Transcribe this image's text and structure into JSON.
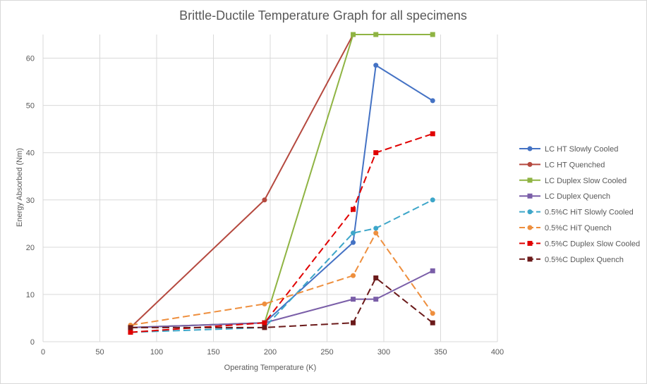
{
  "chart_data": {
    "type": "line",
    "title": "Brittle-Ductile Temperature Graph for all specimens",
    "xlabel": "Operating Temperature (K)",
    "ylabel": "Energy Absorbed (Nm)",
    "xlim": [
      0,
      400
    ],
    "ylim": [
      0,
      65
    ],
    "xticks": [
      0,
      50,
      100,
      150,
      200,
      250,
      300,
      350,
      400
    ],
    "yticks": [
      0,
      10,
      20,
      30,
      40,
      50,
      60
    ],
    "grid": true,
    "legend_position": "right",
    "series": [
      {
        "name": "LC HT Slowly Cooled",
        "color": "#4472C4",
        "marker": "circle",
        "dash": false,
        "x": [
          77,
          195,
          273,
          293,
          343
        ],
        "y": [
          3,
          4,
          21,
          58.5,
          51
        ]
      },
      {
        "name": "LC HT Quenched",
        "color": "#B5493F",
        "marker": "circle",
        "dash": false,
        "x": [
          77,
          195,
          273
        ],
        "y": [
          3,
          30,
          65
        ]
      },
      {
        "name": "LC Duplex Slow Cooled",
        "color": "#8FB443",
        "marker": "square",
        "dash": false,
        "x": [
          77,
          195,
          273,
          293,
          343
        ],
        "y": [
          3,
          4,
          65,
          65,
          65
        ]
      },
      {
        "name": "LC Duplex Quench",
        "color": "#7A5EA8",
        "marker": "square",
        "dash": false,
        "x": [
          77,
          195,
          273,
          293,
          343
        ],
        "y": [
          3,
          4,
          9,
          9,
          15
        ]
      },
      {
        "name": "0.5%C HiT Slowly Cooled",
        "color": "#3DA6C9",
        "marker": "circle",
        "dash": true,
        "x": [
          77,
          195,
          273,
          293,
          343
        ],
        "y": [
          2,
          3,
          23,
          24,
          30
        ]
      },
      {
        "name": "0.5%C HiT Quench",
        "color": "#EE8F3E",
        "marker": "circle",
        "dash": true,
        "x": [
          77,
          195,
          273,
          293,
          343
        ],
        "y": [
          3.5,
          8,
          14,
          23,
          6
        ]
      },
      {
        "name": "0.5%C Duplex Slow Cooled",
        "color": "#E00000",
        "marker": "square",
        "dash": true,
        "x": [
          77,
          195,
          273,
          293,
          343
        ],
        "y": [
          2,
          4,
          28,
          40,
          44
        ]
      },
      {
        "name": "0.5%C Duplex Quench",
        "color": "#6B1A1A",
        "marker": "square",
        "dash": true,
        "x": [
          77,
          195,
          273,
          293,
          343
        ],
        "y": [
          3,
          3,
          4,
          13.5,
          4
        ]
      }
    ]
  }
}
